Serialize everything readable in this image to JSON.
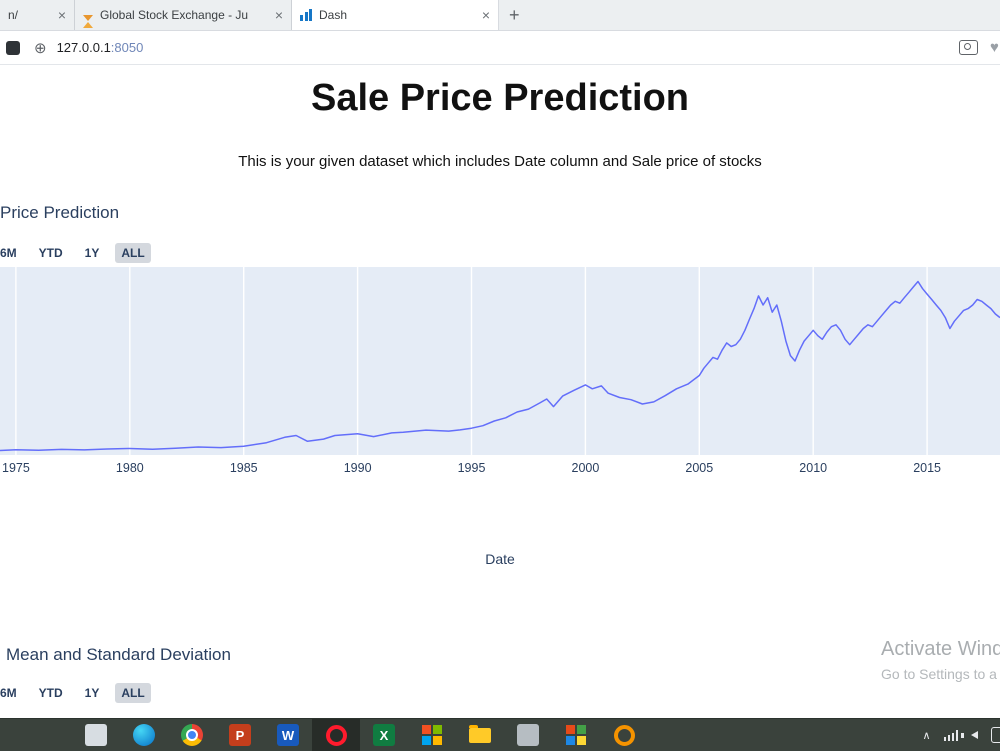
{
  "browser": {
    "tabs": [
      {
        "title": "n/"
      },
      {
        "title": "Global Stock Exchange - Ju"
      },
      {
        "title": "Dash"
      }
    ],
    "close_glyph": "×",
    "new_tab": "+",
    "globe_glyph": "⊕",
    "heart_glyph": "♥",
    "url": {
      "host": "127.0.0.1",
      "port": ":8050"
    }
  },
  "page": {
    "title": "Sale Price Prediction",
    "subtitle": "This is your given dataset which includes Date column and Sale price of stocks"
  },
  "chart1": {
    "title": "Price Prediction",
    "buttons": [
      "6M",
      "YTD",
      "1Y",
      "ALL"
    ],
    "selected": "ALL",
    "xlabel": "Date"
  },
  "chart2": {
    "title": "Mean and Standard Deviation",
    "buttons": [
      "6M",
      "YTD",
      "1Y",
      "ALL"
    ],
    "selected": "ALL"
  },
  "chart_data": {
    "type": "line",
    "title": "Price Prediction",
    "xlabel": "Date",
    "ylabel": "",
    "legend": "none",
    "grid": "vertical-white",
    "plot_bg": "#e5ecf6",
    "line_color": "#636efa",
    "x_range": [
      1974.3,
      2018.2
    ],
    "y_range": [
      0,
      104
    ],
    "grid_years": [
      1975,
      1980,
      1985,
      1990,
      1995,
      2000,
      2005,
      2010,
      2015
    ],
    "tick_labels": [
      "1975",
      "1980",
      "1985",
      "1990",
      "1995",
      "2000",
      "2005",
      "2010",
      "2015"
    ],
    "x": [
      1974.3,
      1975,
      1976,
      1977,
      1978,
      1979,
      1980,
      1981,
      1982,
      1983,
      1984,
      1985,
      1986,
      1986.8,
      1987.3,
      1987.8,
      1988.5,
      1989,
      1990,
      1990.7,
      1991.5,
      1992,
      1993,
      1994,
      1994.5,
      1995,
      1995.5,
      1996,
      1996.5,
      1997,
      1997.5,
      1998,
      1998.3,
      1998.6,
      1999,
      1999.5,
      2000,
      2000.3,
      2000.7,
      2001,
      2001.5,
      2002,
      2002.5,
      2003,
      2003.5,
      2004,
      2004.5,
      2005,
      2005.2,
      2005.4,
      2005.6,
      2005.8,
      2006,
      2006.2,
      2006.4,
      2006.6,
      2006.8,
      2007,
      2007.2,
      2007.4,
      2007.6,
      2007.8,
      2008,
      2008.2,
      2008.4,
      2008.6,
      2008.8,
      2009,
      2009.2,
      2009.4,
      2009.6,
      2009.8,
      2010,
      2010.2,
      2010.4,
      2010.6,
      2010.8,
      2011,
      2011.2,
      2011.4,
      2011.6,
      2011.8,
      2012,
      2012.2,
      2012.4,
      2012.6,
      2012.8,
      2013,
      2013.2,
      2013.4,
      2013.6,
      2013.8,
      2014,
      2014.2,
      2014.4,
      2014.6,
      2014.8,
      2015,
      2015.2,
      2015.4,
      2015.6,
      2015.8,
      2016,
      2016.2,
      2016.4,
      2016.6,
      2016.8,
      2017,
      2017.2,
      2017.4,
      2017.6,
      2017.8,
      2018,
      2018.2
    ],
    "y": [
      2.5,
      2.9,
      2.6,
      3.1,
      2.8,
      3.3,
      3.6,
      3.2,
      3.7,
      4.4,
      4.1,
      4.8,
      6.8,
      9.8,
      10.8,
      7.6,
      8.8,
      10.8,
      11.8,
      10.2,
      12.2,
      12.6,
      13.8,
      13.2,
      13.9,
      14.8,
      16.2,
      18.8,
      20.6,
      23.8,
      25.4,
      28.8,
      31.0,
      26.8,
      32.6,
      35.8,
      38.8,
      36.6,
      38.2,
      34.2,
      31.8,
      30.6,
      28.2,
      29.4,
      32.8,
      36.6,
      39.2,
      44,
      48,
      51,
      54,
      53,
      58,
      62,
      60,
      61,
      64,
      69,
      75,
      81,
      88,
      83,
      87,
      79,
      83,
      74,
      63,
      55,
      52,
      58,
      63,
      66,
      69,
      66,
      64,
      68,
      71,
      72,
      69,
      64,
      61,
      64,
      67,
      70,
      72,
      71,
      74,
      77,
      80,
      83,
      85,
      84,
      87,
      90,
      93,
      96,
      92,
      89,
      86,
      83,
      80,
      76,
      70,
      74,
      77,
      80,
      81,
      83,
      86,
      85,
      83,
      81,
      78,
      76
    ]
  },
  "watermark": {
    "line1": "Activate Wind",
    "line2": "Go to Settings to a"
  },
  "taskbar": {
    "tray_chevron": "∧",
    "items": [
      {
        "name": "app-light",
        "kind": "square",
        "bg": "#d7dde2",
        "glyph": ""
      },
      {
        "name": "edge-browser",
        "kind": "circle",
        "bg1": "#45d6f4",
        "bg2": "#0670c8"
      },
      {
        "name": "chrome-browser",
        "kind": "chrome"
      },
      {
        "name": "powerpoint",
        "kind": "square",
        "bg": "#c43e1c",
        "glyph": "P"
      },
      {
        "name": "word",
        "kind": "square",
        "bg": "#185abd",
        "glyph": "W"
      },
      {
        "name": "opera-browser",
        "kind": "ring",
        "color": "#ff1b2d",
        "active": true
      },
      {
        "name": "excel",
        "kind": "square",
        "bg": "#107c41",
        "glyph": "X"
      },
      {
        "name": "app-colorful",
        "kind": "grid",
        "colors": [
          "#f25022",
          "#7fba00",
          "#00a4ef",
          "#ffb900"
        ]
      },
      {
        "name": "file-explorer",
        "kind": "folder"
      },
      {
        "name": "app-gray",
        "kind": "square",
        "bg": "#b6bdc2",
        "glyph": ""
      },
      {
        "name": "photos-app",
        "kind": "grid",
        "colors": [
          "#e64a19",
          "#43a047",
          "#1e88e5",
          "#fdd835"
        ]
      },
      {
        "name": "sync-app",
        "kind": "ring",
        "color": "#f59300"
      }
    ]
  }
}
